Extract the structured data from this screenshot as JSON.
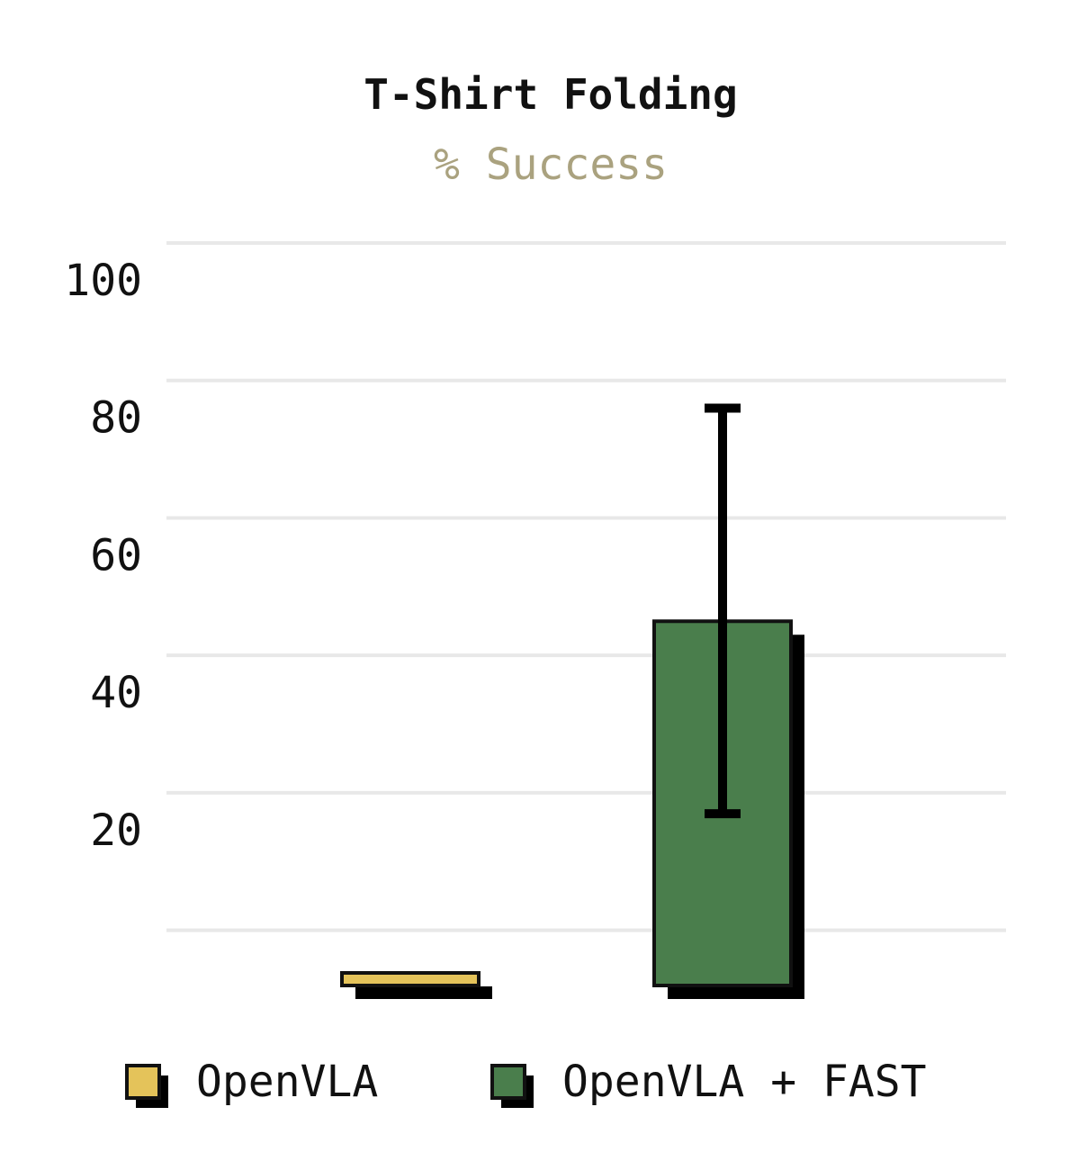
{
  "chart_data": {
    "type": "bar",
    "title": "T-Shirt Folding",
    "subtitle": "% Success",
    "xlabel": "",
    "ylabel": "",
    "ylim": [
      -10,
      100
    ],
    "yticks": [
      20,
      40,
      60,
      80,
      100
    ],
    "grid": true,
    "legend_position": "bottom",
    "categories": [
      "OpenVLA",
      "OpenVLA + FAST"
    ],
    "series": [
      {
        "name": "OpenVLA",
        "value": 0,
        "error": null,
        "color": "#e4c35a"
      },
      {
        "name": "OpenVLA + FAST",
        "value": 53,
        "error": [
          25,
          84
        ],
        "color": "#4a7e4c"
      }
    ],
    "shadow_color": "#000000",
    "legend": [
      {
        "label": "OpenVLA",
        "color": "#e4c35a"
      },
      {
        "label": "OpenVLA + FAST",
        "color": "#4a7e4c"
      }
    ]
  }
}
